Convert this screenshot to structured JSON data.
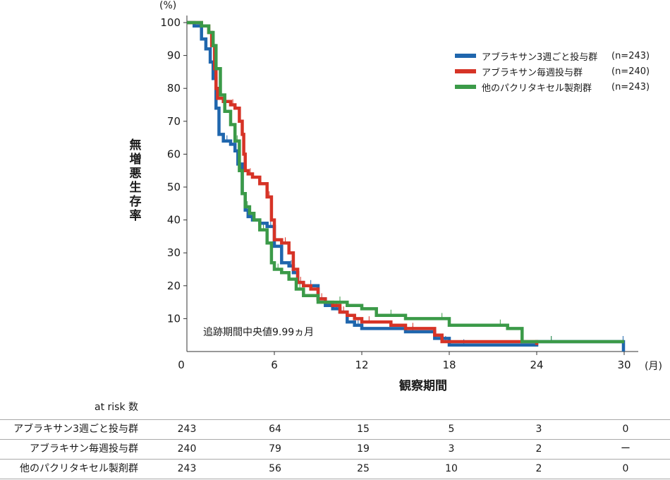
{
  "chart_data": {
    "type": "line",
    "subtype": "kaplan-meier step",
    "ylabel": "無増悪生存率",
    "xlabel": "観察期間",
    "y_unit": "(%)",
    "x_unit": "(月)",
    "xlim": [
      0,
      30
    ],
    "ylim": [
      0,
      100
    ],
    "x_ticks": [
      0,
      6,
      12,
      18,
      24,
      30
    ],
    "y_ticks": [
      10,
      20,
      30,
      40,
      50,
      60,
      70,
      80,
      90,
      100
    ],
    "grid": false,
    "legend_position": "top-right",
    "annotation": "追跡期間中央値9.99ヵ月",
    "series": [
      {
        "name": "アブラキサン3週ごと投与群",
        "n_label": "(n=243)",
        "color": "#1f66ad",
        "x": [
          0,
          0.5,
          1.0,
          1.3,
          1.6,
          1.8,
          2.0,
          2.2,
          2.5,
          3.0,
          3.3,
          3.5,
          3.8,
          4.0,
          4.2,
          4.5,
          5.0,
          5.5,
          6.0,
          6.5,
          7.0,
          7.3,
          7.6,
          8.0,
          9.0,
          9.5,
          10.0,
          10.5,
          11.0,
          11.5,
          12.0,
          13.0,
          15.0,
          16.0,
          17.0,
          18.0,
          20.0,
          22.0,
          24.0,
          26.0,
          28.0,
          29.9,
          29.95
        ],
        "y": [
          100,
          99,
          95,
          92,
          88,
          83,
          74,
          66,
          64,
          63,
          61,
          57,
          48,
          43,
          41,
          40,
          39,
          38,
          32,
          27,
          26,
          24,
          21,
          20,
          16,
          14,
          13,
          12,
          9,
          8,
          7,
          7,
          6,
          6,
          4,
          2,
          2,
          2,
          3,
          3,
          3,
          3,
          0
        ]
      },
      {
        "name": "アブラキサン毎週投与群",
        "n_label": "(n=240)",
        "color": "#d63326",
        "x": [
          0,
          1.0,
          1.5,
          1.7,
          1.9,
          2.0,
          2.1,
          2.5,
          3.0,
          3.3,
          3.6,
          3.8,
          3.9,
          4.0,
          4.2,
          4.5,
          5.0,
          5.5,
          5.8,
          6.0,
          6.5,
          7.0,
          7.3,
          7.6,
          8.0,
          8.5,
          9.0,
          9.5,
          10.0,
          10.5,
          11.0,
          11.5,
          12.0,
          13.0,
          14.0,
          15.0,
          16.0,
          17.0,
          17.5,
          18.0,
          20.0,
          22.0,
          24.0
        ],
        "y": [
          100,
          99,
          97,
          93,
          86,
          80,
          77,
          76,
          75,
          74,
          70,
          66,
          60,
          55,
          54,
          53,
          51,
          47,
          40,
          34,
          33,
          30,
          25,
          21,
          20,
          19,
          16,
          15,
          14,
          12,
          11,
          10,
          9,
          9,
          8,
          7,
          7,
          5,
          3,
          3,
          3,
          3,
          2
        ]
      },
      {
        "name": "他のパクリタキセル製剤群",
        "n_label": "(n=243)",
        "color": "#3b9a48",
        "x": [
          0,
          1.0,
          1.5,
          1.8,
          2.0,
          2.3,
          2.6,
          3.0,
          3.3,
          3.6,
          3.8,
          4.0,
          4.3,
          4.6,
          5.0,
          5.5,
          5.8,
          6.0,
          6.5,
          7.0,
          7.5,
          8.0,
          9.0,
          10.0,
          11.0,
          12.0,
          13.0,
          15.0,
          16.0,
          17.0,
          18.0,
          20.0,
          21.0,
          22.0,
          23.0,
          24.0,
          26.0,
          28.0,
          30.0
        ],
        "y": [
          100,
          99,
          97,
          93,
          86,
          78,
          73,
          69,
          64,
          55,
          48,
          44,
          42,
          40,
          37,
          33,
          27,
          25,
          24,
          22,
          19,
          17,
          15,
          15,
          14,
          13,
          11,
          10,
          10,
          10,
          8,
          8,
          8,
          7,
          3,
          3,
          3,
          3,
          3
        ]
      }
    ]
  },
  "risk_table": {
    "header": "at risk 数",
    "times": [
      0,
      6,
      12,
      18,
      24,
      30
    ],
    "rows": [
      {
        "label": "アブラキサン3週ごと投与群",
        "values": [
          "243",
          "64",
          "15",
          "5",
          "3",
          "0"
        ]
      },
      {
        "label": "アブラキサン毎週投与群",
        "values": [
          "240",
          "79",
          "19",
          "3",
          "2",
          "ー"
        ]
      },
      {
        "label": "他のパクリタキセル製剤群",
        "values": [
          "243",
          "56",
          "25",
          "10",
          "2",
          "0"
        ]
      }
    ]
  }
}
